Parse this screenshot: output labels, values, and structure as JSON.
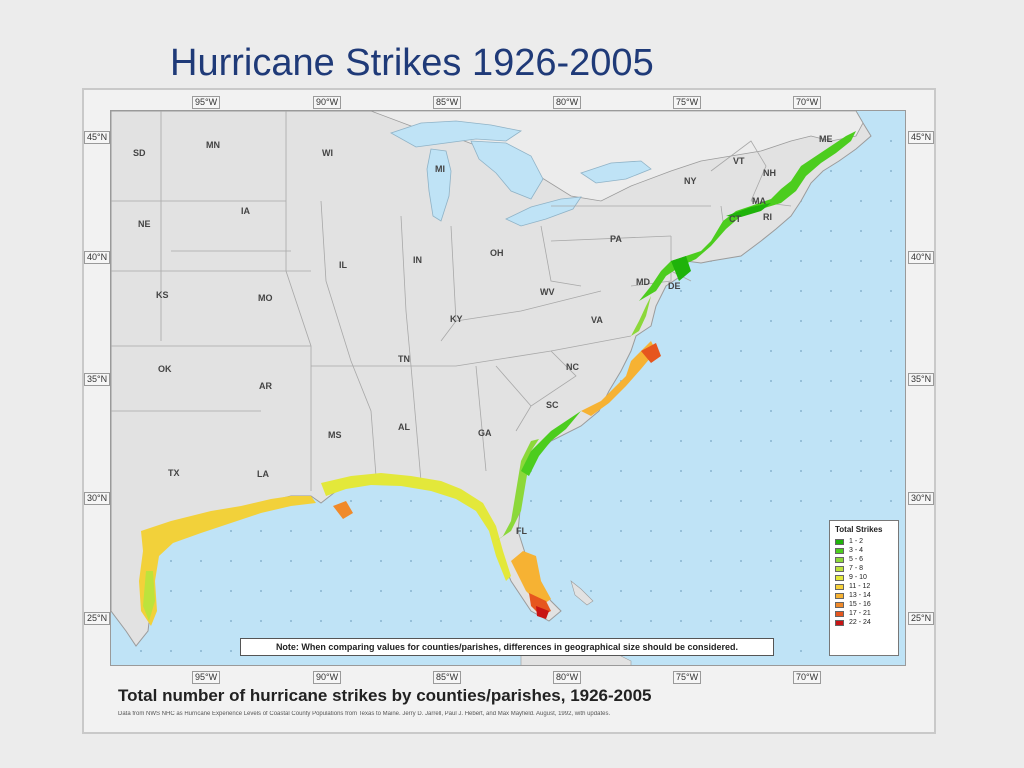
{
  "slide": {
    "title": "Hurricane Strikes 1926-2005"
  },
  "map": {
    "longitude_labels": [
      "95°W",
      "90°W",
      "85°W",
      "80°W",
      "75°W",
      "70°W"
    ],
    "latitude_labels": [
      "45°N",
      "40°N",
      "35°N",
      "30°N",
      "25°N"
    ],
    "states": [
      "SD",
      "MN",
      "WI",
      "MI",
      "NE",
      "IA",
      "IL",
      "IN",
      "OH",
      "PA",
      "NY",
      "VT",
      "NH",
      "ME",
      "MA",
      "CT",
      "RI",
      "KS",
      "MO",
      "KY",
      "WV",
      "MD",
      "DE",
      "VA",
      "OK",
      "AR",
      "TN",
      "NC",
      "SC",
      "MS",
      "AL",
      "GA",
      "TX",
      "LA",
      "FL"
    ],
    "legend": {
      "title": "Total Strikes",
      "entries": [
        {
          "label": "1 - 2",
          "color": "#1fb30a"
        },
        {
          "label": "3 - 4",
          "color": "#4ccd1e"
        },
        {
          "label": "5 - 6",
          "color": "#8cd83a"
        },
        {
          "label": "7 - 8",
          "color": "#bde33c"
        },
        {
          "label": "9 - 10",
          "color": "#e3e83a"
        },
        {
          "label": "11 - 12",
          "color": "#f7d13a"
        },
        {
          "label": "13 - 14",
          "color": "#f6b233"
        },
        {
          "label": "15 - 16",
          "color": "#f08a2a"
        },
        {
          "label": "17 - 21",
          "color": "#e6561e"
        },
        {
          "label": "22 - 24",
          "color": "#c81414"
        }
      ]
    },
    "note": "Note: When comparing values for counties/parishes, differences in geographical size should be considered.",
    "caption": "Total number of hurricane strikes by counties/parishes, 1926-2005",
    "source": "Data from NWS NHC as Hurricane Experience Levels of Coastal County Populations from Texas to Maine. Jerry D. Jarrell, Paul J. Hebert, and Max Mayfield. August, 1992, with updates.",
    "colors": {
      "ocean": "#bfe3f6",
      "land": "#e2e2e2",
      "border": "#9b9b9b",
      "title": "#1f3a78"
    }
  }
}
